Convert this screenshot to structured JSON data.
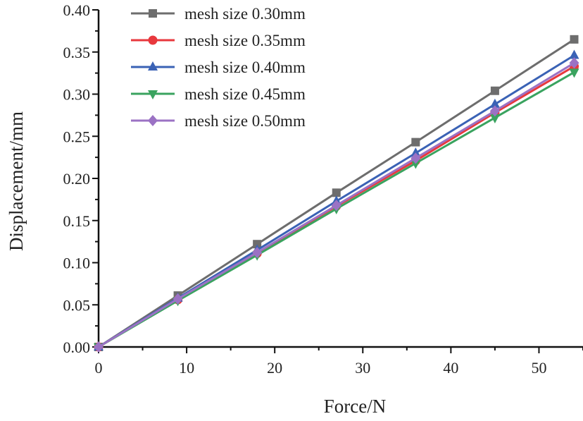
{
  "chart_data": {
    "type": "line",
    "title": "",
    "xlabel": "Force/N",
    "ylabel": "Displacement/mm",
    "xlim": [
      0,
      55
    ],
    "ylim": [
      0,
      0.4
    ],
    "xticks": [
      0,
      10,
      20,
      30,
      40,
      50
    ],
    "xtick_labels": [
      "0",
      "10",
      "20",
      "30",
      "40",
      "50"
    ],
    "yticks": [
      0,
      0.05,
      0.1,
      0.15,
      0.2,
      0.25,
      0.3,
      0.35,
      0.4
    ],
    "ytick_labels": [
      "0.00",
      "0.05",
      "0.10",
      "0.15",
      "0.20",
      "0.25",
      "0.30",
      "0.35",
      "0.40"
    ],
    "grid": false,
    "legend_position": "top-left",
    "x": [
      0,
      9,
      18,
      27,
      36,
      45,
      54
    ],
    "series": [
      {
        "name": "mesh size 0.30mm",
        "color": "#6d6d6d",
        "marker": "square",
        "values": [
          0,
          0.061,
          0.122,
          0.183,
          0.243,
          0.304,
          0.365
        ]
      },
      {
        "name": "mesh size 0.35mm",
        "color": "#e8383d",
        "marker": "circle",
        "values": [
          0,
          0.056,
          0.111,
          0.167,
          0.221,
          0.278,
          0.333
        ]
      },
      {
        "name": "mesh size 0.40mm",
        "color": "#3a62b5",
        "marker": "triangle-up",
        "values": [
          0,
          0.058,
          0.115,
          0.173,
          0.23,
          0.288,
          0.346
        ]
      },
      {
        "name": "mesh size 0.45mm",
        "color": "#3aa35f",
        "marker": "triangle-down",
        "values": [
          0,
          0.055,
          0.109,
          0.164,
          0.218,
          0.272,
          0.326
        ]
      },
      {
        "name": "mesh size 0.50mm",
        "color": "#9b72c4",
        "marker": "diamond",
        "values": [
          0,
          0.057,
          0.112,
          0.168,
          0.224,
          0.28,
          0.337
        ]
      }
    ]
  }
}
